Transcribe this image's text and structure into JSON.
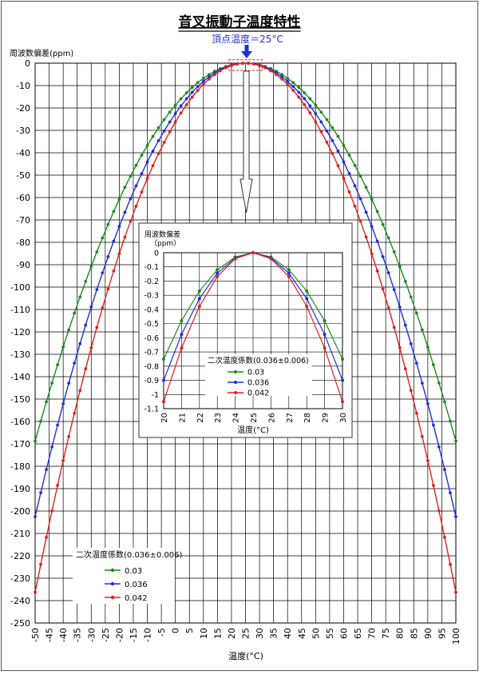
{
  "chart_data": [
    {
      "type": "line",
      "title": "音叉振動子温度特性",
      "annotation": "頂点温度＝25°C",
      "ylabel": "周波数偏差(ppm)",
      "xlabel": "温度(°C)",
      "xlim": [
        -50,
        100
      ],
      "ylim": [
        -250,
        0
      ],
      "xticks": [
        "-50",
        "-45",
        "-40",
        "-35",
        "-30",
        "-25",
        "-20",
        "-15",
        "-10",
        "-5",
        "0",
        "5",
        "10",
        "15",
        "20",
        "25",
        "30",
        "35",
        "40",
        "45",
        "50",
        "55",
        "60",
        "65",
        "70",
        "75",
        "80",
        "85",
        "90",
        "95",
        "100"
      ],
      "yticks": [
        "0",
        "-10",
        "-20",
        "-30",
        "-40",
        "-50",
        "-60",
        "-70",
        "-80",
        "-90",
        "-100",
        "-110",
        "-120",
        "-130",
        "-140",
        "-150",
        "-160",
        "-170",
        "-180",
        "-190",
        "-200",
        "-210",
        "-220",
        "-230",
        "-240",
        "-250"
      ],
      "grid": true,
      "legend_title": "二次温度係数(0.036±0.006)",
      "legend_position": "bottom-left",
      "vertex_temperature": 25,
      "x_start": -50,
      "x_end": 100,
      "x_step": 2,
      "series": [
        {
          "name": "0.03",
          "coefficient": 0.03,
          "color": "#1f8a1f"
        },
        {
          "name": "0.036",
          "coefficient": 0.036,
          "color": "#1f2fd8"
        },
        {
          "name": "0.042",
          "coefficient": 0.042,
          "color": "#e02020"
        }
      ]
    },
    {
      "type": "line",
      "ylabel": "周波数偏差\n（ppm）",
      "xlabel": "温度(°C)",
      "xlim": [
        20,
        30
      ],
      "ylim": [
        -1.1,
        0
      ],
      "xticks": [
        "20",
        "21",
        "22",
        "23",
        "24",
        "25",
        "26",
        "27",
        "28",
        "29",
        "30"
      ],
      "yticks": [
        "0",
        "-0.1",
        "-0.2",
        "-0.3",
        "-0.4",
        "-0.5",
        "-0.6",
        "-0.7",
        "-0.8",
        "-0.9",
        "-1",
        "-1.1"
      ],
      "grid": true,
      "legend_title": "二次温度係数(0.036±0.006)",
      "legend_position": "center-right",
      "x": [
        20,
        21,
        22,
        23,
        24,
        25,
        26,
        27,
        28,
        29,
        30
      ],
      "series": [
        {
          "name": "0.03",
          "color": "#1f8a1f",
          "values": [
            -0.75,
            -0.48,
            -0.27,
            -0.12,
            -0.03,
            0,
            -0.03,
            -0.12,
            -0.27,
            -0.48,
            -0.75
          ]
        },
        {
          "name": "0.036",
          "color": "#1f2fd8",
          "values": [
            -0.9,
            -0.576,
            -0.324,
            -0.144,
            -0.036,
            0,
            -0.036,
            -0.144,
            -0.324,
            -0.576,
            -0.9
          ]
        },
        {
          "name": "0.042",
          "color": "#e02020",
          "values": [
            -1.05,
            -0.672,
            -0.378,
            -0.168,
            -0.042,
            0,
            -0.042,
            -0.168,
            -0.378,
            -0.672,
            -1.05
          ]
        }
      ]
    }
  ]
}
